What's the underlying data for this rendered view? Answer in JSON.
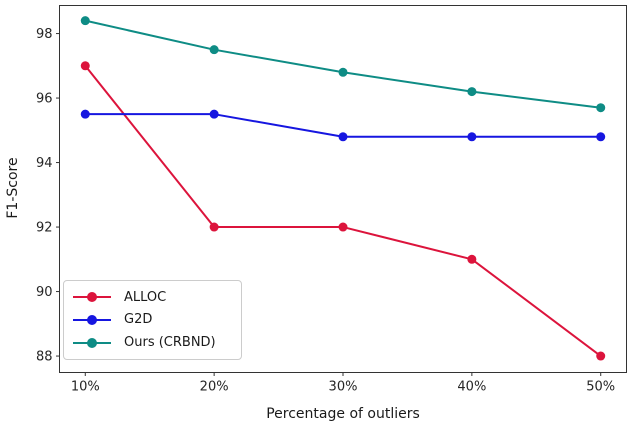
{
  "figure": {
    "background": "#ffffff",
    "axis_color": "#262626",
    "spine_color": "#333333",
    "legend_border_color": "#cccccc"
  },
  "chart_data": {
    "type": "line",
    "title": "",
    "xlabel": "Percentage of outliers",
    "ylabel": "F1-Score",
    "categories": [
      "10%",
      "20%",
      "30%",
      "40%",
      "50%"
    ],
    "series": [
      {
        "name": "ALLOC",
        "color": "#DC143C",
        "values": [
          97.0,
          92.0,
          92.0,
          91.0,
          88.0
        ]
      },
      {
        "name": "G2D",
        "color": "#1616E0",
        "values": [
          95.5,
          95.5,
          94.8,
          94.8,
          94.8
        ]
      },
      {
        "name": "Ours (CRBND)",
        "color": "#0E8C85",
        "values": [
          98.4,
          97.5,
          96.8,
          96.2,
          95.7
        ]
      }
    ],
    "yticks": [
      88,
      90,
      92,
      94,
      96,
      98
    ],
    "ylim": [
      87.49,
      98.87
    ],
    "grid": false,
    "legend_position": "lower-left",
    "marker": "circle",
    "line_width": 2,
    "marker_radius": 4.5
  }
}
